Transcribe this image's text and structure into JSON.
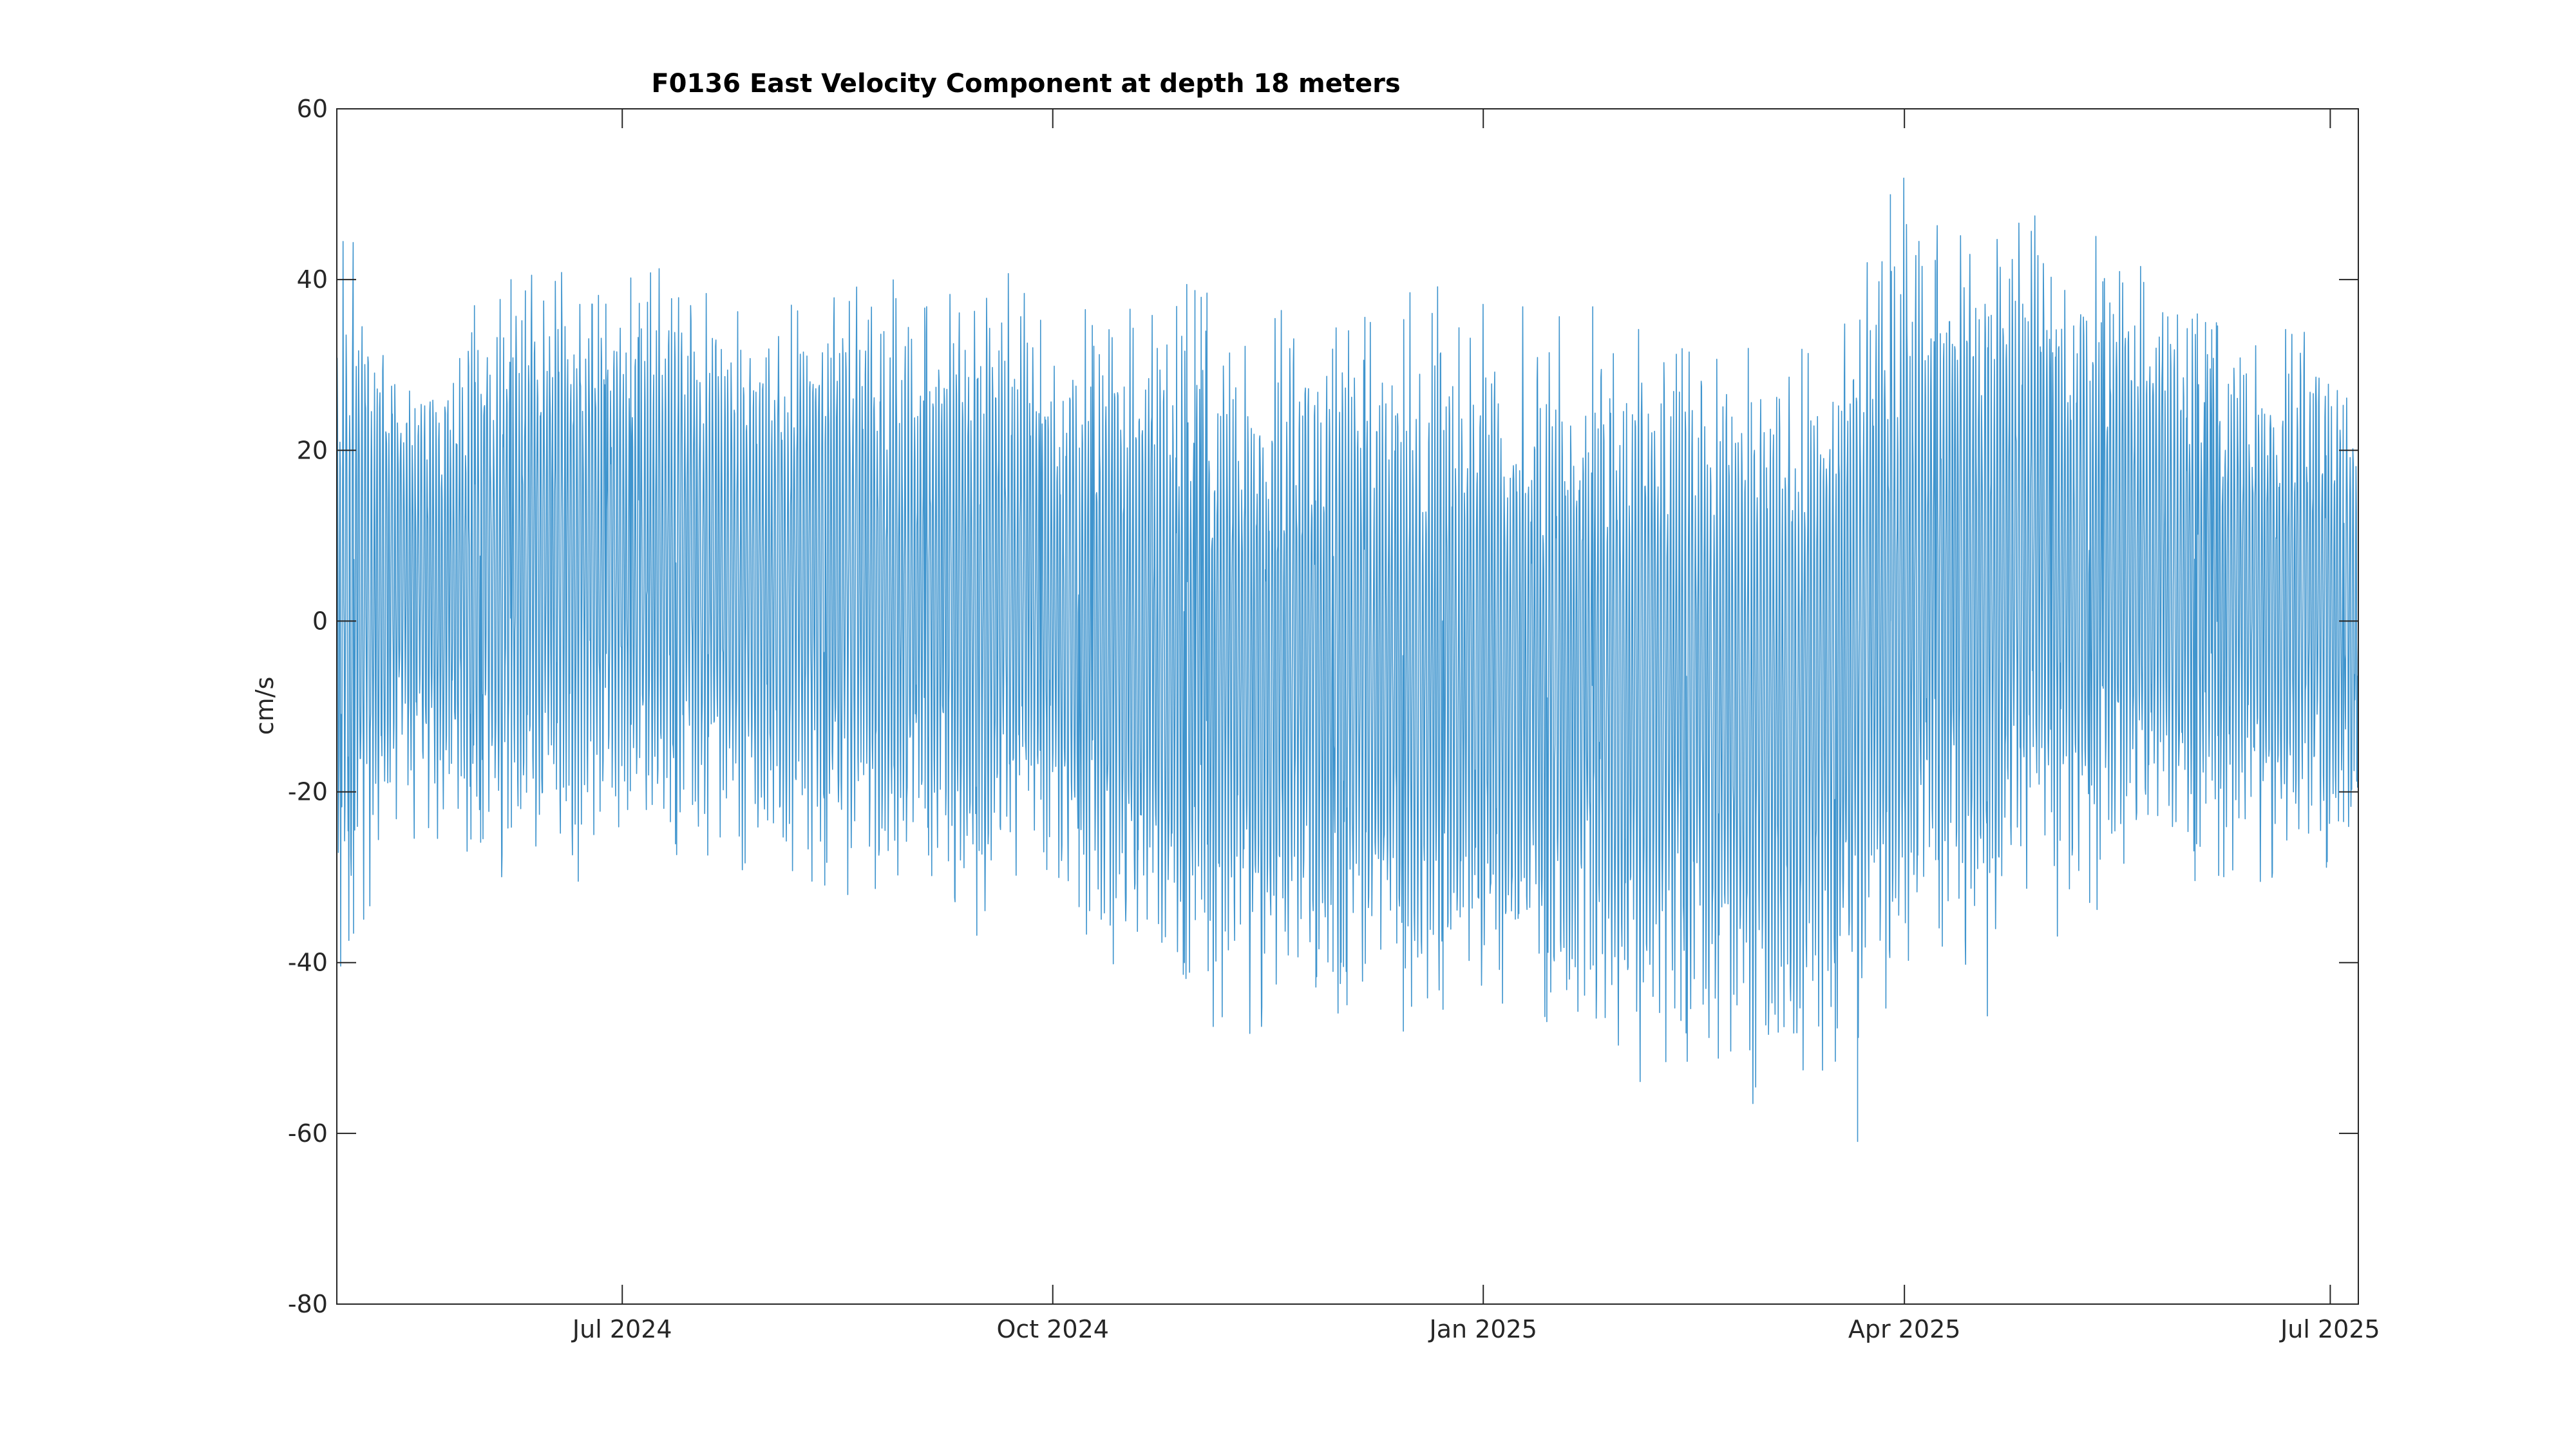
{
  "chart_data": {
    "type": "line",
    "title": "F0136 East Velocity Component at depth 18 meters",
    "xlabel": "",
    "ylabel": "cm/s",
    "xlim": [
      "2024-05-01",
      "2025-07-07"
    ],
    "ylim": [
      -80,
      60
    ],
    "x_ticks": [
      {
        "date": "2024-07-01",
        "label": "Jul 2024"
      },
      {
        "date": "2024-10-01",
        "label": "Oct 2024"
      },
      {
        "date": "2025-01-01",
        "label": "Jan 2025"
      },
      {
        "date": "2025-04-01",
        "label": "Apr 2025"
      },
      {
        "date": "2025-07-01",
        "label": "Jul 2025"
      }
    ],
    "y_ticks": [
      60,
      40,
      20,
      0,
      -20,
      -40,
      -60,
      -80
    ],
    "grid": false,
    "line_color": "#0072BD",
    "series": [
      {
        "x": [
          "2024-05-01",
          "2024-05-15",
          "2024-06-01",
          "2024-06-15",
          "2024-07-01",
          "2024-07-15",
          "2024-08-01",
          "2024-08-15",
          "2024-09-01",
          "2024-09-15",
          "2024-10-01",
          "2024-10-15",
          "2024-11-01",
          "2024-11-15",
          "2024-12-01",
          "2024-12-15",
          "2025-01-01",
          "2025-01-15",
          "2025-02-01",
          "2025-02-15",
          "2025-03-01",
          "2025-03-15",
          "2025-04-01",
          "2025-04-15",
          "2025-05-01",
          "2025-05-15",
          "2025-06-01",
          "2025-06-15",
          "2025-07-01",
          "2025-07-07"
        ],
        "mean": [
          4,
          6,
          5,
          8,
          6,
          7,
          5,
          6,
          4,
          3,
          2,
          -2,
          -6,
          -5,
          -4,
          -6,
          -5,
          -6,
          -7,
          -8,
          -9,
          -8,
          6,
          8,
          10,
          8,
          6,
          4,
          3,
          2
        ],
        "upper": [
          46,
          30,
          38,
          44,
          40,
          42,
          40,
          42,
          38,
          40,
          38,
          36,
          40,
          40,
          38,
          36,
          40,
          34,
          40,
          34,
          38,
          34,
          48,
          40,
          44,
          42,
          36,
          36,
          37,
          22
        ],
        "lower": [
          -42,
          -26,
          -28,
          -32,
          -30,
          -28,
          -30,
          -32,
          -34,
          -38,
          -30,
          -46,
          -44,
          -46,
          -44,
          -52,
          -44,
          -48,
          -56,
          -52,
          -58,
          -54,
          -46,
          -50,
          -40,
          -34,
          -34,
          -30,
          -30,
          -20
        ],
        "peak_max": {
          "x": "2025-03-29",
          "y": 50
        },
        "peak_min": {
          "x": "2025-03-22",
          "y": -61
        }
      }
    ]
  }
}
